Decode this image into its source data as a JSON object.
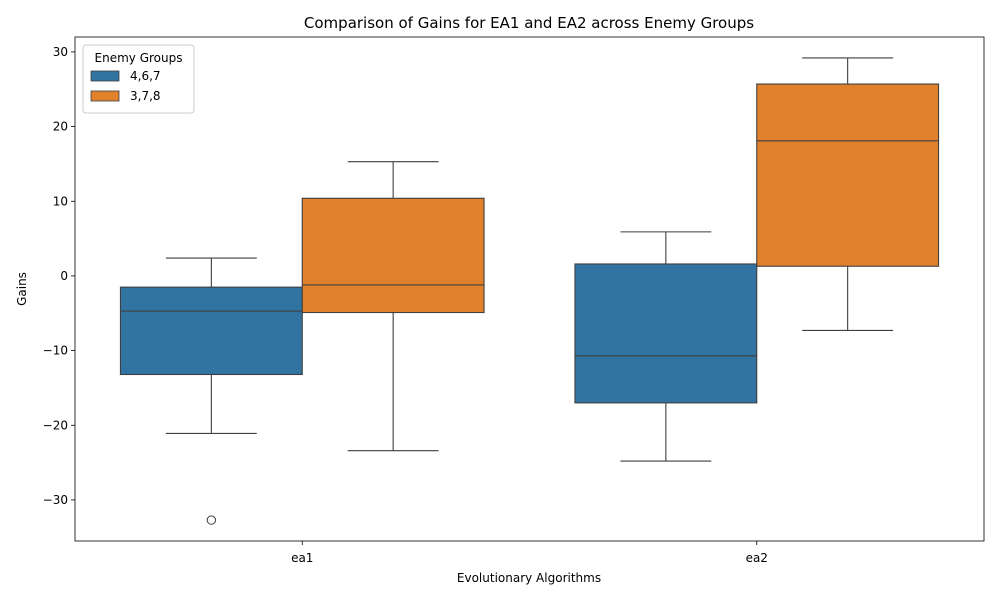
{
  "chart_data": {
    "type": "box",
    "title": "Comparison of Gains for EA1 and EA2 across Enemy Groups",
    "xlabel": "Evolutionary Algorithms",
    "ylabel": "Gains",
    "categories": [
      "ea1",
      "ea2"
    ],
    "ylim": [
      -35.5,
      32.0
    ],
    "yticks": [
      -30,
      -20,
      -10,
      0,
      10,
      20,
      30
    ],
    "ytick_labels": [
      "−30",
      "−20",
      "−10",
      "0",
      "10",
      "20",
      "30"
    ],
    "grid": false,
    "legend": {
      "title": "Enemy Groups",
      "placement": "top-left"
    },
    "series": [
      {
        "name": "4,6,7",
        "color": "#3274a1",
        "boxes": [
          {
            "category": "ea1",
            "whisker_low": -21.1,
            "q1": -13.2,
            "median": -4.7,
            "q3": -1.5,
            "whisker_high": 2.4,
            "outliers": [
              -32.7
            ]
          },
          {
            "category": "ea2",
            "whisker_low": -24.8,
            "q1": -17.0,
            "median": -10.7,
            "q3": 1.6,
            "whisker_high": 5.9,
            "outliers": []
          }
        ]
      },
      {
        "name": "3,7,8",
        "color": "#e1812c",
        "boxes": [
          {
            "category": "ea1",
            "whisker_low": -23.4,
            "q1": -4.9,
            "median": -1.2,
            "q3": 10.4,
            "whisker_high": 15.3,
            "outliers": []
          },
          {
            "category": "ea2",
            "whisker_low": -7.3,
            "q1": 1.3,
            "median": 18.1,
            "q3": 25.7,
            "whisker_high": 29.2,
            "outliers": []
          }
        ]
      }
    ]
  }
}
